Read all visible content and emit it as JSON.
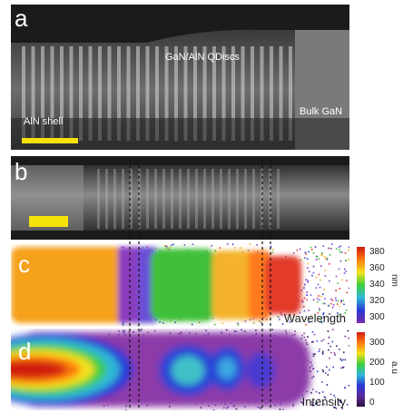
{
  "panels": {
    "a": {
      "label": "a",
      "annotations": {
        "qdiscs": "GaN/AlN QDiscs",
        "bulk": "Bulk GaN",
        "shell": "AlN shell"
      }
    },
    "b": {
      "label": "b"
    },
    "c": {
      "label": "c",
      "map_label": "Wavelength",
      "colorbar": {
        "ticks": [
          "380",
          "360",
          "340",
          "320",
          "300"
        ],
        "unit": "nm"
      }
    },
    "d": {
      "label": "d",
      "map_label": "Intensity",
      "colorbar": {
        "ticks": [
          "300",
          "200",
          "100",
          "0"
        ],
        "unit": "a.u"
      }
    }
  },
  "colors": {
    "scale_bar": "#f5e10a",
    "dashed_lines": "#111111",
    "panel_bg": "#1a1a1a"
  }
}
